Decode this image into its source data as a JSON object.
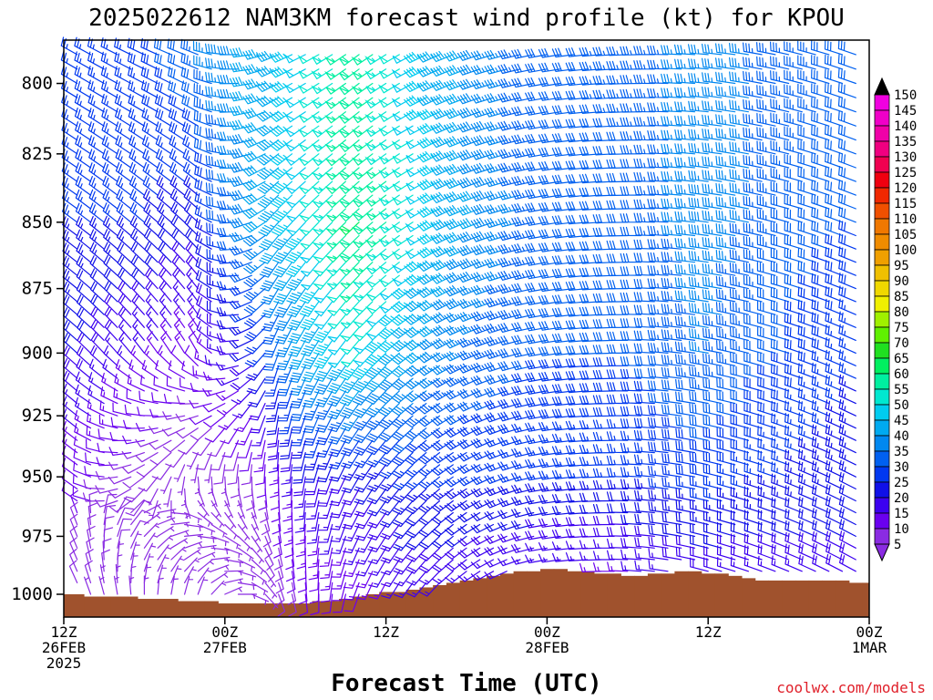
{
  "chart_data": {
    "type": "wind_barbs",
    "title": "2025022612 NAM3KM forecast wind profile (kt) for KPOU",
    "xlabel": "Forecast Time (UTC)",
    "credit": "coolwx.com/models",
    "y_ticks": [
      {
        "value": 800,
        "label": "800"
      },
      {
        "value": 825,
        "label": "825"
      },
      {
        "value": 850,
        "label": "850"
      },
      {
        "value": 875,
        "label": "875"
      },
      {
        "value": 900,
        "label": "900"
      },
      {
        "value": 925,
        "label": "925"
      },
      {
        "value": 950,
        "label": "950"
      },
      {
        "value": 975,
        "label": "975"
      },
      {
        "value": 1000,
        "label": "1000"
      }
    ],
    "x_ticks": [
      {
        "hour": 0,
        "lines": [
          "12Z",
          "26FEB",
          "2025"
        ]
      },
      {
        "hour": 12,
        "lines": [
          "00Z",
          "27FEB"
        ]
      },
      {
        "hour": 24,
        "lines": [
          "12Z"
        ]
      },
      {
        "hour": 36,
        "lines": [
          "00Z",
          "28FEB"
        ]
      },
      {
        "hour": 48,
        "lines": [
          "12Z"
        ]
      },
      {
        "hour": 60,
        "lines": [
          "00Z",
          "1MAR"
        ]
      }
    ],
    "x_range_hours": [
      0,
      60
    ],
    "time_step_hours": 1,
    "y_scale": "log-pressure",
    "ylim_hpa": [
      1010,
      785
    ],
    "pressure_levels_hpa": [
      785,
      790,
      795,
      800,
      805,
      810,
      815,
      820,
      825,
      830,
      835,
      840,
      845,
      850,
      855,
      860,
      865,
      870,
      875,
      880,
      885,
      890,
      895,
      900,
      905,
      910,
      915,
      920,
      925,
      930,
      935,
      940,
      945,
      950,
      955,
      960,
      965,
      970,
      975,
      980,
      985,
      990,
      995,
      1000
    ],
    "surface_pressure_hpa": [
      1000,
      1000,
      1001,
      1001,
      1001,
      1001,
      1002,
      1002,
      1002,
      1003,
      1003,
      1003,
      1004,
      1004,
      1004,
      1004,
      1004,
      1004,
      1004,
      1003,
      1003,
      1002,
      1001,
      1000,
      999,
      999,
      998,
      997,
      996,
      995,
      994,
      993,
      992,
      991,
      990,
      990,
      989,
      989,
      990,
      990,
      991,
      991,
      992,
      992,
      991,
      991,
      990,
      990,
      991,
      991,
      992,
      993,
      994,
      994,
      994,
      994,
      994,
      994,
      994,
      995,
      995
    ],
    "speed_keyframes": [
      {
        "hour": 0,
        "values": [
          [
            785,
            25
          ],
          [
            850,
            25
          ],
          [
            900,
            22
          ],
          [
            950,
            12
          ],
          [
            1000,
            8
          ]
        ]
      },
      {
        "hour": 6,
        "values": [
          [
            785,
            28
          ],
          [
            850,
            25
          ],
          [
            900,
            15
          ],
          [
            950,
            8
          ],
          [
            1000,
            6
          ]
        ]
      },
      {
        "hour": 10,
        "values": [
          [
            785,
            35
          ],
          [
            850,
            22
          ],
          [
            900,
            12
          ],
          [
            950,
            6
          ],
          [
            1000,
            5
          ]
        ]
      },
      {
        "hour": 14,
        "values": [
          [
            785,
            42
          ],
          [
            850,
            38
          ],
          [
            900,
            20
          ],
          [
            950,
            8
          ],
          [
            1000,
            5
          ]
        ]
      },
      {
        "hour": 18,
        "values": [
          [
            785,
            48
          ],
          [
            850,
            48
          ],
          [
            900,
            40
          ],
          [
            950,
            18
          ],
          [
            1000,
            10
          ]
        ]
      },
      {
        "hour": 22,
        "values": [
          [
            785,
            58
          ],
          [
            850,
            60
          ],
          [
            900,
            50
          ],
          [
            950,
            20
          ],
          [
            1000,
            12
          ]
        ]
      },
      {
        "hour": 26,
        "values": [
          [
            785,
            48
          ],
          [
            850,
            52
          ],
          [
            900,
            42
          ],
          [
            950,
            25
          ],
          [
            1000,
            15
          ]
        ]
      },
      {
        "hour": 30,
        "values": [
          [
            785,
            40
          ],
          [
            850,
            42
          ],
          [
            900,
            35
          ],
          [
            950,
            25
          ],
          [
            1000,
            15
          ]
        ]
      },
      {
        "hour": 36,
        "values": [
          [
            785,
            30
          ],
          [
            850,
            32
          ],
          [
            900,
            30
          ],
          [
            950,
            25
          ],
          [
            1000,
            12
          ]
        ]
      },
      {
        "hour": 42,
        "values": [
          [
            785,
            35
          ],
          [
            850,
            30
          ],
          [
            900,
            30
          ],
          [
            950,
            25
          ],
          [
            1000,
            12
          ]
        ]
      },
      {
        "hour": 48,
        "values": [
          [
            785,
            35
          ],
          [
            850,
            38
          ],
          [
            900,
            35
          ],
          [
            950,
            28
          ],
          [
            1000,
            15
          ]
        ]
      },
      {
        "hour": 54,
        "values": [
          [
            785,
            35
          ],
          [
            850,
            32
          ],
          [
            900,
            30
          ],
          [
            950,
            25
          ],
          [
            1000,
            15
          ]
        ]
      },
      {
        "hour": 60,
        "values": [
          [
            785,
            30
          ],
          [
            850,
            30
          ],
          [
            900,
            25
          ],
          [
            950,
            22
          ],
          [
            1000,
            18
          ]
        ]
      }
    ],
    "direction_keyframes": [
      {
        "hour": 0,
        "values": [
          [
            785,
            300
          ],
          [
            900,
            310
          ],
          [
            1000,
            330
          ]
        ]
      },
      {
        "hour": 10,
        "values": [
          [
            785,
            290
          ],
          [
            900,
            330
          ],
          [
            1000,
            20
          ]
        ]
      },
      {
        "hour": 16,
        "values": [
          [
            785,
            250
          ],
          [
            900,
            200
          ],
          [
            1000,
            160
          ]
        ]
      },
      {
        "hour": 22,
        "values": [
          [
            785,
            235
          ],
          [
            900,
            220
          ],
          [
            1000,
            200
          ]
        ]
      },
      {
        "hour": 30,
        "values": [
          [
            785,
            250
          ],
          [
            900,
            245
          ],
          [
            1000,
            230
          ]
        ]
      },
      {
        "hour": 36,
        "values": [
          [
            785,
            260
          ],
          [
            900,
            260
          ],
          [
            1000,
            260
          ]
        ]
      },
      {
        "hour": 48,
        "values": [
          [
            785,
            275
          ],
          [
            900,
            280
          ],
          [
            1000,
            285
          ]
        ]
      },
      {
        "hour": 60,
        "values": [
          [
            785,
            290
          ],
          [
            900,
            295
          ],
          [
            1000,
            300
          ]
        ]
      }
    ],
    "colorbar": {
      "unit": "kt",
      "labels": [
        5,
        10,
        15,
        20,
        25,
        30,
        35,
        40,
        45,
        50,
        55,
        60,
        65,
        70,
        75,
        80,
        85,
        90,
        95,
        100,
        105,
        110,
        115,
        120,
        125,
        130,
        135,
        140,
        145,
        150
      ],
      "colors": [
        "#8a2be2",
        "#6a00f0",
        "#3c00f0",
        "#1010e8",
        "#0038f0",
        "#0060f0",
        "#0088f0",
        "#00aaf0",
        "#00ccf0",
        "#00e8d0",
        "#00f0a0",
        "#00f060",
        "#20e020",
        "#60f000",
        "#a0f000",
        "#f0f000",
        "#f0d800",
        "#f0c000",
        "#f0a000",
        "#f08c00",
        "#f07800",
        "#f05000",
        "#f02800",
        "#f00010",
        "#f00050",
        "#f00080",
        "#f000a8",
        "#f000c8",
        "#f000e0"
      ],
      "top_arrow_color": "#000000",
      "bottom_arrow_color": "#8a2be2"
    },
    "ground_color": "#a0522d"
  }
}
